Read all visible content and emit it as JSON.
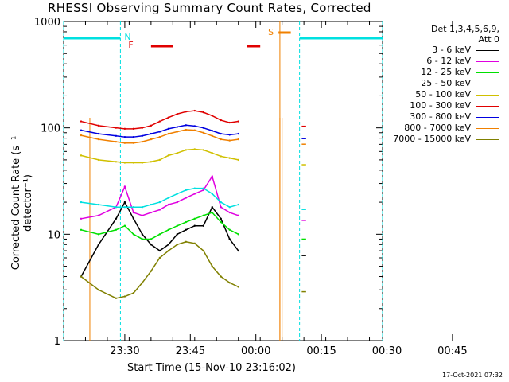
{
  "chart_data": {
    "type": "line",
    "title": "RHESSI Observing Summary Count Rates, Corrected",
    "xlabel": "Start Time (15-Nov-10 23:16:02)",
    "ylabel": "Corrected Count Rate (s⁻¹ detector⁻¹)",
    "yscale": "log",
    "ylim": [
      1,
      1000
    ],
    "xlim_minutes": [
      -14,
      59
    ],
    "x_tick_labels": [
      "23:30",
      "23:45",
      "00:00",
      "00:15",
      "00:30",
      "00:45"
    ],
    "y_tick_labels": [
      "1",
      "10",
      "100",
      "1000"
    ],
    "legend_header": [
      "Det 1,3,4,5,6,9,",
      "Att 0"
    ],
    "x": [
      -10,
      -6,
      -2,
      0,
      2,
      4,
      6,
      8,
      10,
      12,
      14,
      16,
      18,
      20,
      22,
      24,
      26
    ],
    "series": [
      {
        "name": "3 - 6 keV",
        "color": "#000000",
        "values": [
          4,
          8,
          14,
          20,
          14,
          10,
          8,
          7,
          8,
          10,
          11,
          12,
          12,
          18,
          14,
          9,
          7
        ]
      },
      {
        "name": "6 - 12 keV",
        "color": "#e000e0",
        "values": [
          14,
          15,
          18,
          28,
          16,
          15,
          16,
          17,
          19,
          20,
          22,
          24,
          26,
          35,
          18,
          16,
          15
        ]
      },
      {
        "name": "12 - 25 keV",
        "color": "#00e000",
        "values": [
          11,
          10,
          11,
          12,
          10,
          9,
          9,
          10,
          11,
          12,
          13,
          14,
          15,
          16,
          13,
          11,
          10
        ]
      },
      {
        "name": "25 - 50 keV",
        "color": "#00e0e0",
        "values": [
          20,
          19,
          18,
          18,
          18,
          18,
          19,
          20,
          22,
          24,
          26,
          27,
          27,
          24,
          20,
          18,
          19
        ]
      },
      {
        "name": "50 - 100 keV",
        "color": "#d0c000",
        "values": [
          55,
          50,
          48,
          47,
          47,
          47,
          48,
          50,
          55,
          58,
          62,
          63,
          62,
          58,
          54,
          52,
          50
        ]
      },
      {
        "name": "100 - 300 keV",
        "color": "#e00000",
        "values": [
          115,
          105,
          100,
          98,
          98,
          100,
          105,
          115,
          125,
          135,
          142,
          145,
          140,
          130,
          118,
          112,
          115
        ]
      },
      {
        "name": "300 - 800 keV",
        "color": "#0000e0",
        "values": [
          95,
          88,
          84,
          82,
          82,
          84,
          88,
          92,
          98,
          102,
          106,
          104,
          100,
          94,
          88,
          86,
          88
        ]
      },
      {
        "name": "800 - 7000 keV",
        "color": "#f08000",
        "values": [
          85,
          78,
          74,
          72,
          72,
          74,
          78,
          82,
          88,
          92,
          96,
          95,
          90,
          84,
          78,
          76,
          78
        ]
      },
      {
        "name": "7000 - 15000 keV",
        "color": "#808000",
        "values": [
          4,
          3,
          2.5,
          2.6,
          2.8,
          3.5,
          4.5,
          6,
          7,
          8,
          8.5,
          8.2,
          7,
          5,
          4,
          3.5,
          3.2
        ]
      }
    ],
    "annotations": [
      "N",
      "F",
      "S"
    ],
    "grid": false,
    "legend_position": "right"
  },
  "footer": {
    "timestamp": "17-Oct-2021 07:32"
  }
}
